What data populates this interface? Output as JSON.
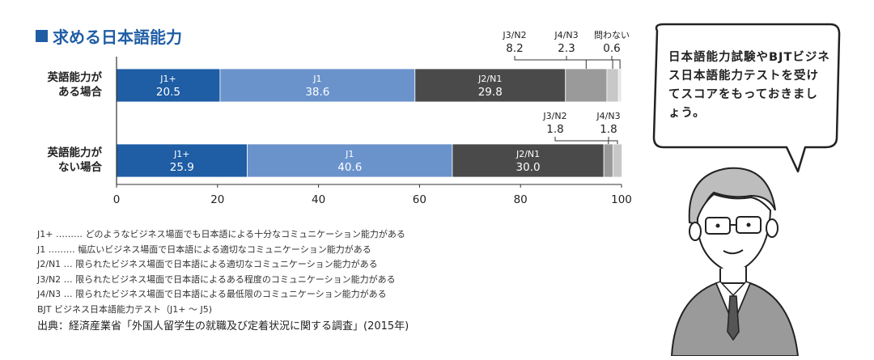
{
  "title": "求める日本語能力",
  "chart_data": {
    "type": "bar",
    "orientation": "horizontal",
    "stacked": true,
    "rows": [
      {
        "label_lines": [
          "英語能力が",
          "ある場合"
        ]
      },
      {
        "label_lines": [
          "英語能力が",
          "ない場合"
        ]
      }
    ],
    "series": [
      {
        "name": "J1+",
        "color": "#1f5da5",
        "values": [
          20.5,
          25.9
        ]
      },
      {
        "name": "J1",
        "color": "#6a93cc",
        "values": [
          38.6,
          40.6
        ]
      },
      {
        "name": "J2/N1",
        "color": "#4a4a4a",
        "values": [
          29.8,
          30.0
        ]
      },
      {
        "name": "J3/N2",
        "color": "#9a9a9a",
        "values": [
          8.2,
          1.8
        ]
      },
      {
        "name": "J4/N3",
        "color": "#c8c8c8",
        "values": [
          2.3,
          1.8
        ]
      },
      {
        "name": "問わない",
        "color": "#e6e6e6",
        "values": [
          0.6,
          0
        ]
      }
    ],
    "callouts": [
      {
        "row": 0,
        "series": 3,
        "name": "J3/N2",
        "value": "8.2"
      },
      {
        "row": 0,
        "series": 4,
        "name": "J4/N3",
        "value": "2.3"
      },
      {
        "row": 0,
        "series": 5,
        "name": "問わない",
        "value": "0.6"
      },
      {
        "row": 1,
        "series": 3,
        "name": "J3/N2",
        "value": "1.8"
      },
      {
        "row": 1,
        "series": 4,
        "name": "J4/N3",
        "value": "1.8"
      }
    ],
    "xlim": [
      0,
      100
    ],
    "xticks": [
      0,
      20,
      40,
      60,
      80,
      100
    ],
    "xunit": "(%)"
  },
  "legend": [
    {
      "code": "J1+",
      "dots": "………",
      "text": "どのようなビジネス場面でも日本語による十分なコミュニケーション能力がある"
    },
    {
      "code": "J1",
      "dots": "………",
      "text": "幅広いビジネス場面で日本語による適切なコミュニケーション能力がある"
    },
    {
      "code": "J2/N1",
      "dots": "…",
      "text": "限られたビジネス場面で日本語による適切なコミュニケーション能力がある"
    },
    {
      "code": "J3/N2",
      "dots": "…",
      "text": "限られたビジネス場面で日本語によるある程度のコミュニケーション能力がある"
    },
    {
      "code": "J4/N3",
      "dots": "…",
      "text": "限られたビジネス場面で日本語による最低限のコミュニケーション能力がある"
    }
  ],
  "legend_note": "BJT ビジネス日本語能力テスト（J1+ ～ J5)",
  "source": "出典：経済産業省「外国人留学生の就職及び定着状況に関する調査」(2015年)",
  "speech_bubble": "日本語能力試験やBJTビジネス日本語能力テストを受けてスコアをもっておきましょう。",
  "colors": {
    "accent": "#1f5da5"
  }
}
